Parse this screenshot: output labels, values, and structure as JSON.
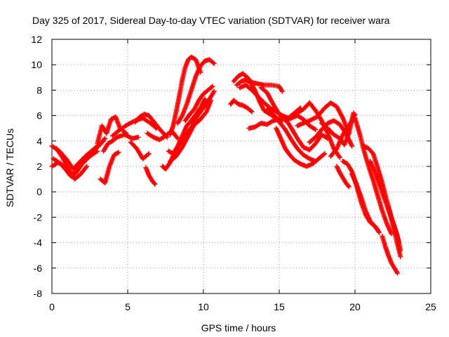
{
  "chart_data": {
    "type": "scatter",
    "title": "Day 325 of 2017, Sidereal Day-to-day VTEC variation (SDTVAR) for receiver wara",
    "xlabel": "GPS time / hours",
    "ylabel": "SDTVAR / TECUs",
    "xlim": [
      0,
      25
    ],
    "ylim": [
      -8,
      12
    ],
    "x_ticks": [
      0,
      5,
      10,
      15,
      20,
      25
    ],
    "y_ticks": [
      -8,
      -6,
      -4,
      -2,
      0,
      2,
      4,
      6,
      8,
      10,
      12
    ],
    "grid": true,
    "legend": "none",
    "marker": "plus",
    "color": "#ff0000",
    "series": [
      {
        "x": [
          0.0,
          0.5,
          1.0,
          1.4,
          1.8,
          2.3,
          2.8,
          3.2,
          3.5
        ],
        "y": [
          3.6,
          3.2,
          2.5,
          1.8,
          2.3,
          2.9,
          3.4,
          3.8,
          4.2
        ]
      },
      {
        "x": [
          0.0,
          0.4,
          0.8,
          1.2,
          1.6,
          2.0,
          2.5,
          3.0
        ],
        "y": [
          2.0,
          2.3,
          2.0,
          1.3,
          1.5,
          2.2,
          2.8,
          3.2
        ]
      },
      {
        "x": [
          0.3,
          0.7,
          1.1,
          1.5,
          1.9,
          2.3
        ],
        "y": [
          3.4,
          2.7,
          1.8,
          1.0,
          1.4,
          2.0
        ]
      },
      {
        "x": [
          0.1,
          0.6,
          1.0,
          1.3,
          1.7,
          2.1,
          2.6,
          3.0,
          3.4
        ],
        "y": [
          2.6,
          2.2,
          1.6,
          1.2,
          1.8,
          2.5,
          3.0,
          3.5,
          4.0
        ]
      },
      {
        "x": [
          3.0,
          3.3,
          3.6,
          3.9,
          4.2,
          4.5,
          4.9
        ],
        "y": [
          3.8,
          5.2,
          4.6,
          5.7,
          5.9,
          5.0,
          4.6
        ]
      },
      {
        "x": [
          3.2,
          3.5,
          3.8,
          4.1,
          4.4
        ],
        "y": [
          1.0,
          0.7,
          2.0,
          2.9,
          3.1
        ]
      },
      {
        "x": [
          3.4,
          3.7,
          4.0,
          4.3,
          4.8,
          5.3,
          5.7
        ],
        "y": [
          3.2,
          3.8,
          4.0,
          4.3,
          4.5,
          4.2,
          4.3
        ]
      },
      {
        "x": [
          4.0,
          4.5,
          5.0,
          5.5,
          6.0,
          6.5,
          6.9
        ],
        "y": [
          4.4,
          4.9,
          5.3,
          5.6,
          5.8,
          5.4,
          5.0
        ]
      },
      {
        "x": [
          5.2,
          5.6,
          6.0,
          6.4
        ],
        "y": [
          3.9,
          3.4,
          2.6,
          3.0
        ]
      },
      {
        "x": [
          5.5,
          5.8,
          6.1,
          6.4,
          6.8,
          7.2,
          7.6
        ],
        "y": [
          5.5,
          5.9,
          6.1,
          6.0,
          5.4,
          4.8,
          4.3
        ]
      },
      {
        "x": [
          6.2,
          6.4,
          6.6,
          6.8
        ],
        "y": [
          1.9,
          1.3,
          0.9,
          0.6
        ]
      },
      {
        "x": [
          6.3,
          6.7,
          7.1,
          7.5,
          7.9,
          8.3
        ],
        "y": [
          4.6,
          4.3,
          4.1,
          4.4,
          4.8,
          4.2
        ]
      },
      {
        "x": [
          7.3,
          7.5,
          7.8,
          8.1,
          8.5,
          8.9,
          9.3,
          9.7
        ],
        "y": [
          2.0,
          1.8,
          2.3,
          3.1,
          3.9,
          4.6,
          5.2,
          5.6
        ]
      },
      {
        "x": [
          7.7,
          8.0,
          8.3,
          8.6,
          8.9,
          9.2,
          9.5,
          9.8,
          10.1
        ],
        "y": [
          3.2,
          3.0,
          3.6,
          4.4,
          5.2,
          5.6,
          6.1,
          6.6,
          7.3
        ]
      },
      {
        "x": [
          7.8,
          8.2,
          8.6,
          9.0,
          9.4,
          9.8,
          10.2,
          10.5
        ],
        "y": [
          2.4,
          2.8,
          3.5,
          4.4,
          5.3,
          5.7,
          6.3,
          7.2
        ]
      },
      {
        "x": [
          7.8,
          8.0,
          8.2,
          8.4,
          8.6,
          8.8,
          9.0,
          9.2,
          9.5,
          9.8
        ],
        "y": [
          4.5,
          5.2,
          6.3,
          7.5,
          8.8,
          9.8,
          10.4,
          10.6,
          10.4,
          9.4
        ]
      },
      {
        "x": [
          8.3,
          8.6,
          8.9,
          9.2,
          9.5,
          9.8,
          10.1,
          10.4,
          10.7
        ],
        "y": [
          5.4,
          6.0,
          6.9,
          8.0,
          9.1,
          9.9,
          10.3,
          10.4,
          10.1
        ]
      },
      {
        "x": [
          8.8,
          9.1,
          9.4,
          9.7,
          10.0,
          10.3,
          10.6
        ],
        "y": [
          5.6,
          6.1,
          6.5,
          7.2,
          7.7,
          8.0,
          8.3
        ]
      },
      {
        "x": [
          9.2,
          9.5,
          9.8,
          10.1,
          10.4,
          10.7
        ],
        "y": [
          5.0,
          5.8,
          6.3,
          6.8,
          7.3,
          7.9
        ]
      },
      {
        "x": [
          12.0,
          12.3,
          12.6,
          12.9,
          13.2,
          13.6,
          14.0,
          14.5,
          15.0,
          15.2
        ],
        "y": [
          8.7,
          9.1,
          9.3,
          9.0,
          8.6,
          8.5,
          8.4,
          8.4,
          8.3,
          7.9
        ]
      },
      {
        "x": [
          12.2,
          12.5,
          12.8,
          13.1,
          13.4,
          13.7,
          14.0,
          14.4,
          14.8,
          15.2
        ],
        "y": [
          8.4,
          8.7,
          8.8,
          8.6,
          8.0,
          7.1,
          6.4,
          6.1,
          5.8,
          5.6
        ]
      },
      {
        "x": [
          12.4,
          12.8,
          13.2,
          13.6,
          14.0,
          14.4,
          14.8,
          15.2,
          15.6,
          16.0,
          16.4
        ],
        "y": [
          8.2,
          8.4,
          8.0,
          7.5,
          7.0,
          6.6,
          6.3,
          6.0,
          5.8,
          6.2,
          6.6
        ]
      },
      {
        "x": [
          11.8,
          12.0,
          12.3,
          12.6,
          12.9,
          13.2
        ],
        "y": [
          6.9,
          7.2,
          6.9,
          6.8,
          6.6,
          6.3
        ]
      },
      {
        "x": [
          13.0,
          13.4,
          13.8,
          14.2,
          14.6,
          15.0
        ],
        "y": [
          5.0,
          5.1,
          5.4,
          5.3,
          5.6,
          5.7
        ]
      },
      {
        "x": [
          13.8,
          14.2,
          14.6,
          15.0,
          15.4,
          15.8,
          16.2,
          16.6,
          17.0,
          17.4
        ],
        "y": [
          8.2,
          7.8,
          6.9,
          6.1,
          5.6,
          5.8,
          6.0,
          5.7,
          5.2,
          4.9
        ]
      },
      {
        "x": [
          14.2,
          14.6,
          15.0,
          15.4,
          15.8,
          16.2,
          16.6,
          17.0,
          17.4
        ],
        "y": [
          6.5,
          6.1,
          5.5,
          4.9,
          4.1,
          3.4,
          2.9,
          2.6,
          2.4
        ]
      },
      {
        "x": [
          14.8,
          15.1,
          15.4,
          15.7,
          16.0,
          16.4,
          16.8,
          17.2,
          17.6,
          18.0
        ],
        "y": [
          5.0,
          4.2,
          3.4,
          2.9,
          2.5,
          2.2,
          2.0,
          2.2,
          2.6,
          3.0
        ]
      },
      {
        "x": [
          15.3,
          15.6,
          15.9,
          16.2,
          16.6,
          17.0,
          17.4,
          17.8,
          18.2
        ],
        "y": [
          5.8,
          5.4,
          4.8,
          4.2,
          3.5,
          3.3,
          3.8,
          4.5,
          4.2
        ]
      },
      {
        "x": [
          15.8,
          16.2,
          16.6,
          17.0,
          17.4,
          17.8,
          18.2,
          18.6,
          19.0
        ],
        "y": [
          6.0,
          6.2,
          6.5,
          7.0,
          6.4,
          5.6,
          4.6,
          3.4,
          2.7
        ]
      },
      {
        "x": [
          16.2,
          16.6,
          17.0,
          17.5,
          18.0,
          18.4,
          18.8,
          19.2,
          19.6
        ],
        "y": [
          5.2,
          5.4,
          5.6,
          5.9,
          6.6,
          7.0,
          6.7,
          5.8,
          4.6
        ]
      },
      {
        "x": [
          17.0,
          17.4,
          17.8,
          18.2,
          18.6,
          19.0,
          19.4,
          19.8
        ],
        "y": [
          3.9,
          4.3,
          4.9,
          5.4,
          5.6,
          5.3,
          4.6,
          3.6
        ]
      },
      {
        "x": [
          17.8,
          18.2,
          18.6,
          19.0,
          19.3,
          19.6,
          19.9
        ],
        "y": [
          5.4,
          5.0,
          4.5,
          4.2,
          3.7,
          4.6,
          6.2
        ]
      },
      {
        "x": [
          18.4,
          18.8,
          19.2,
          19.5,
          19.8,
          20.0
        ],
        "y": [
          2.8,
          3.4,
          4.5,
          5.0,
          5.6,
          6.1
        ]
      },
      {
        "x": [
          18.8,
          19.0,
          19.2,
          19.4,
          19.6
        ],
        "y": [
          2.0,
          1.5,
          1.1,
          0.7,
          0.4
        ]
      },
      {
        "x": [
          19.2,
          19.5,
          19.8,
          20.1,
          20.4,
          20.7,
          21.0,
          21.3,
          21.5
        ],
        "y": [
          2.4,
          2.2,
          1.6,
          0.5,
          -0.8,
          -1.8,
          -2.4,
          -2.7,
          -3.0
        ]
      },
      {
        "x": [
          19.8,
          20.1,
          20.4,
          20.7,
          21.0,
          21.3,
          21.6
        ],
        "y": [
          1.4,
          0.6,
          -0.4,
          -1.5,
          -2.3,
          -2.7,
          -3.2
        ]
      },
      {
        "x": [
          20.0,
          20.3,
          20.6,
          20.9,
          21.2,
          21.5,
          21.8,
          22.1,
          22.4
        ],
        "y": [
          5.8,
          4.6,
          3.2,
          2.0,
          0.9,
          -0.3,
          -1.5,
          -2.5,
          -3.3
        ]
      },
      {
        "x": [
          20.6,
          20.9,
          21.2,
          21.5,
          21.8,
          22.1,
          22.4,
          22.7,
          22.9
        ],
        "y": [
          3.6,
          3.4,
          3.0,
          1.9,
          0.7,
          -0.7,
          -2.0,
          -3.1,
          -4.0
        ]
      },
      {
        "x": [
          21.0,
          21.3,
          21.6,
          21.9,
          22.2,
          22.5,
          22.8,
          23.0
        ],
        "y": [
          2.4,
          1.6,
          0.6,
          -0.4,
          -1.4,
          -2.4,
          -3.5,
          -4.6
        ]
      },
      {
        "x": [
          21.8,
          22.0,
          22.2,
          22.4,
          22.6,
          22.8
        ],
        "y": [
          -3.5,
          -4.3,
          -5.0,
          -5.6,
          -6.0,
          -6.4
        ]
      },
      {
        "x": [
          22.2,
          22.4,
          22.6,
          22.8,
          23.0
        ],
        "y": [
          -1.2,
          -2.1,
          -3.1,
          -4.1,
          -5.1
        ]
      }
    ]
  }
}
